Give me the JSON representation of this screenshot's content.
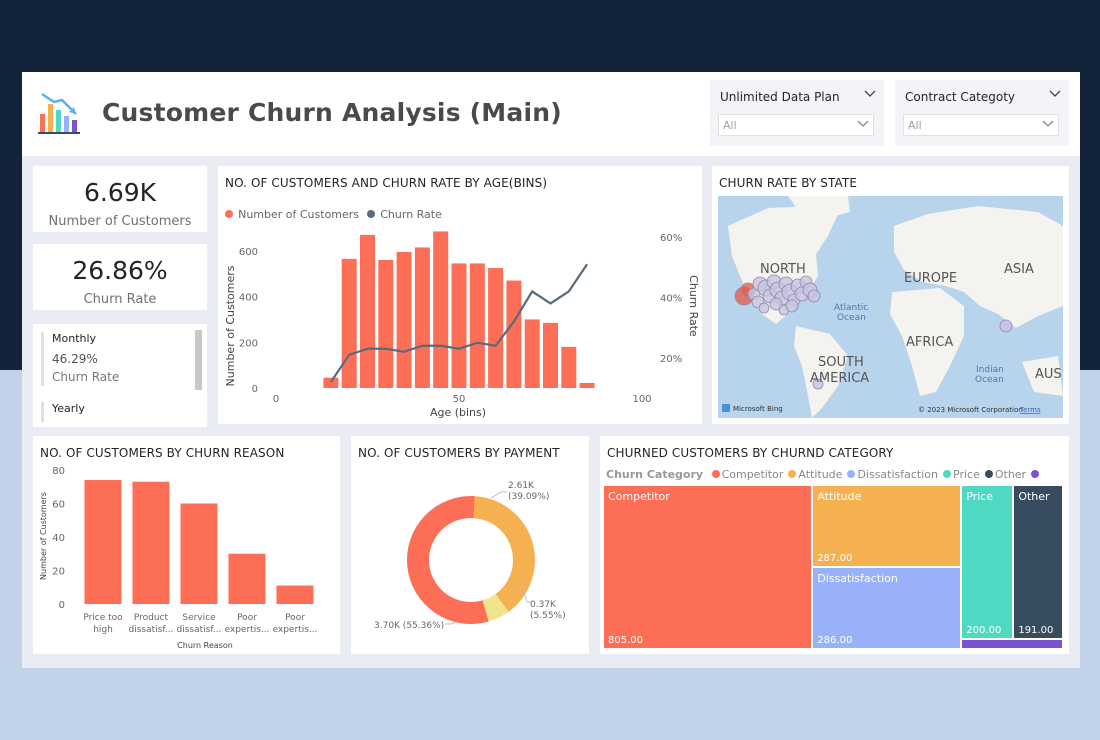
{
  "header": {
    "title": "Customer Churn Analysis (Main)",
    "logo_icon": "bar-chart-down-icon"
  },
  "slicers": [
    {
      "title": "Unlimited Data Plan",
      "value": "All"
    },
    {
      "title": "Contract Categoty",
      "value": "All"
    }
  ],
  "kpis": {
    "customers": {
      "value": "6.69K",
      "label": "Number of Customers"
    },
    "churn_rate": {
      "value": "26.86%",
      "label": "Churn Rate"
    }
  },
  "contract_card": {
    "item1_title": "Monthly",
    "item1_value": "46.29%",
    "item1_label": "Churn Rate",
    "item2_title": "Yearly"
  },
  "age_chart": {
    "title": "NO. OF CUSTOMERS AND CHURN RATE BY AGE(BINS)",
    "legend_customers": "Number of Customers",
    "legend_churn": "Churn Rate",
    "ylabel_left": "Number of Customers",
    "ylabel_right": "Churn Rate",
    "xlabel": "Age (bins)",
    "colors": {
      "bar": "#fd6e57",
      "line": "#596a7c"
    }
  },
  "map": {
    "title": "CHURN RATE BY STATE",
    "labels": {
      "north": "NORTH",
      "europe": "EUROPE",
      "asia": "ASIA",
      "africa": "AFRICA",
      "south": "SOUTH",
      "america": "AMERICA",
      "aus": "AUS",
      "atlantic": "Atlantic",
      "ocean1": "Ocean",
      "indian": "Indian",
      "ocean2": "Ocean"
    },
    "attribution": "© 2023 Microsoft Corporation",
    "terms": "Terms",
    "bing": "Microsoft Bing"
  },
  "reason_chart": {
    "title": "NO. OF CUSTOMERS BY CHURN REASON",
    "ylabel": "Number of Customers",
    "xlabel": "Churn Reason"
  },
  "payment_chart": {
    "title": "NO. OF CUSTOMERS BY PAYMENT"
  },
  "treemap": {
    "title": "CHURNED CUSTOMERS BY CHURND CATEGORY",
    "legend_title": "Churn Category"
  },
  "chart_data": [
    {
      "type": "bar",
      "id": "age",
      "x": [
        15,
        20,
        25,
        30,
        35,
        40,
        45,
        50,
        55,
        60,
        65,
        70,
        75,
        80,
        85
      ],
      "series": [
        {
          "name": "Number of Customers",
          "values": [
            45,
            565,
            670,
            560,
            595,
            615,
            685,
            545,
            545,
            525,
            470,
            300,
            285,
            180,
            22
          ]
        },
        {
          "name": "Churn Rate",
          "type": "line",
          "values": [
            0.12,
            0.21,
            0.23,
            0.23,
            0.22,
            0.24,
            0.24,
            0.23,
            0.25,
            0.24,
            0.32,
            0.42,
            0.38,
            0.42,
            0.51
          ]
        }
      ],
      "xticks": [
        "0",
        "50",
        "100"
      ],
      "xlim": [
        0,
        100
      ],
      "yticks_left": [
        "0",
        "200",
        "400",
        "600"
      ],
      "ylim_left": [
        0,
        700
      ],
      "yticks_right": [
        "20%",
        "40%",
        "60%"
      ],
      "ylim_right": [
        0.1,
        0.63
      ]
    },
    {
      "type": "bar",
      "id": "reason",
      "categories": [
        [
          "Price too",
          "high"
        ],
        [
          "Product",
          "dissatisf..."
        ],
        [
          "Service",
          "dissatisf..."
        ],
        [
          "Poor",
          "expertis..."
        ],
        [
          "Poor",
          "expertis..."
        ]
      ],
      "values": [
        74,
        73,
        60,
        30,
        11
      ],
      "yticks": [
        "0",
        "20",
        "40",
        "60",
        "80"
      ],
      "ylim": [
        0,
        80
      ]
    },
    {
      "type": "pie",
      "id": "payment",
      "slices": [
        {
          "value": 2.61,
          "label": "2.61K",
          "pct": "(39.09%)",
          "color": "#f5b14f"
        },
        {
          "value": 0.37,
          "label": "0.37K",
          "pct": "(5.55%)",
          "color": "#f2e38e"
        },
        {
          "value": 3.7,
          "label": "3.70K (55.36%)",
          "color": "#fd6e57"
        }
      ]
    },
    {
      "type": "treemap",
      "id": "churn_category",
      "items": [
        {
          "name": "Competitor",
          "value": 805,
          "label": "805.00",
          "color": "#fd6e57"
        },
        {
          "name": "Attitude",
          "value": 287,
          "label": "287.00",
          "color": "#f5b14f"
        },
        {
          "name": "Dissatisfaction",
          "value": 286,
          "label": "286.00",
          "color": "#98b1f8"
        },
        {
          "name": "Price",
          "value": 200,
          "label": "200.00",
          "color": "#4fd9c3"
        },
        {
          "name": "Other",
          "value": 191,
          "label": "191.00",
          "color": "#374d5f"
        }
      ],
      "extra_color": "#7b52cf"
    }
  ]
}
